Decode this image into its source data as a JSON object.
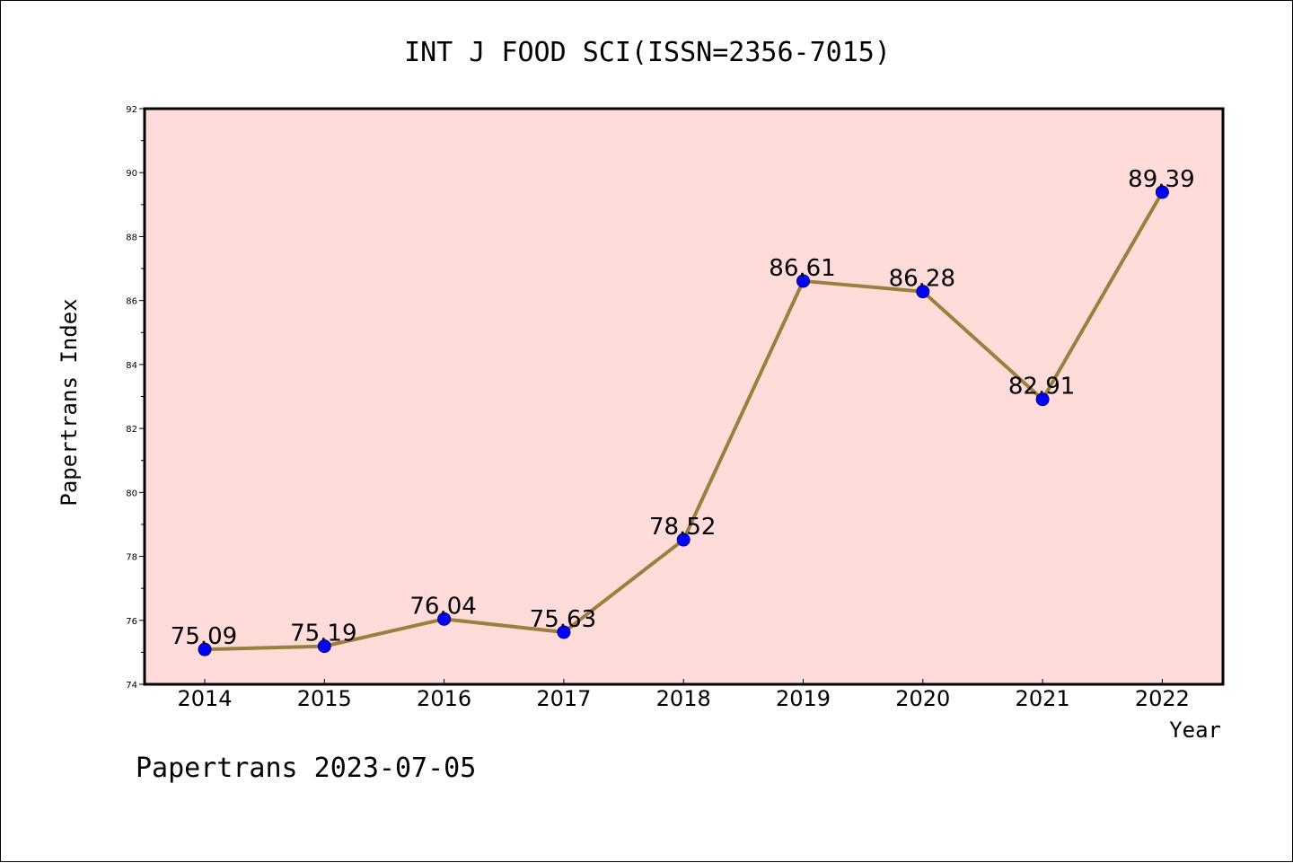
{
  "chart_data": {
    "type": "line",
    "title": "INT J FOOD SCI(ISSN=2356-7015)",
    "xlabel": "Year",
    "ylabel": "Papertrans Index",
    "categories": [
      "2014",
      "2015",
      "2016",
      "2017",
      "2018",
      "2019",
      "2020",
      "2021",
      "2022"
    ],
    "values": [
      75.09,
      75.19,
      76.04,
      75.63,
      78.52,
      86.61,
      86.28,
      82.91,
      89.39
    ],
    "data_labels": [
      "75.09",
      "75.19",
      "76.04",
      "75.63",
      "78.52",
      "86.61",
      "86.28",
      "82.91",
      "89.39"
    ],
    "ylim": [
      74,
      92
    ],
    "yticks": [
      "74",
      "76",
      "78",
      "80",
      "82",
      "84",
      "86",
      "88",
      "90",
      "92"
    ],
    "grid": false,
    "legend": "none"
  },
  "footer": "Papertrans 2023-07-05",
  "colors": {
    "plot_background": "#ffdcda",
    "line": "#9b7f3e",
    "marker_fill": "#0000ff",
    "marker_stroke": "#000080",
    "axis": "#000000"
  }
}
